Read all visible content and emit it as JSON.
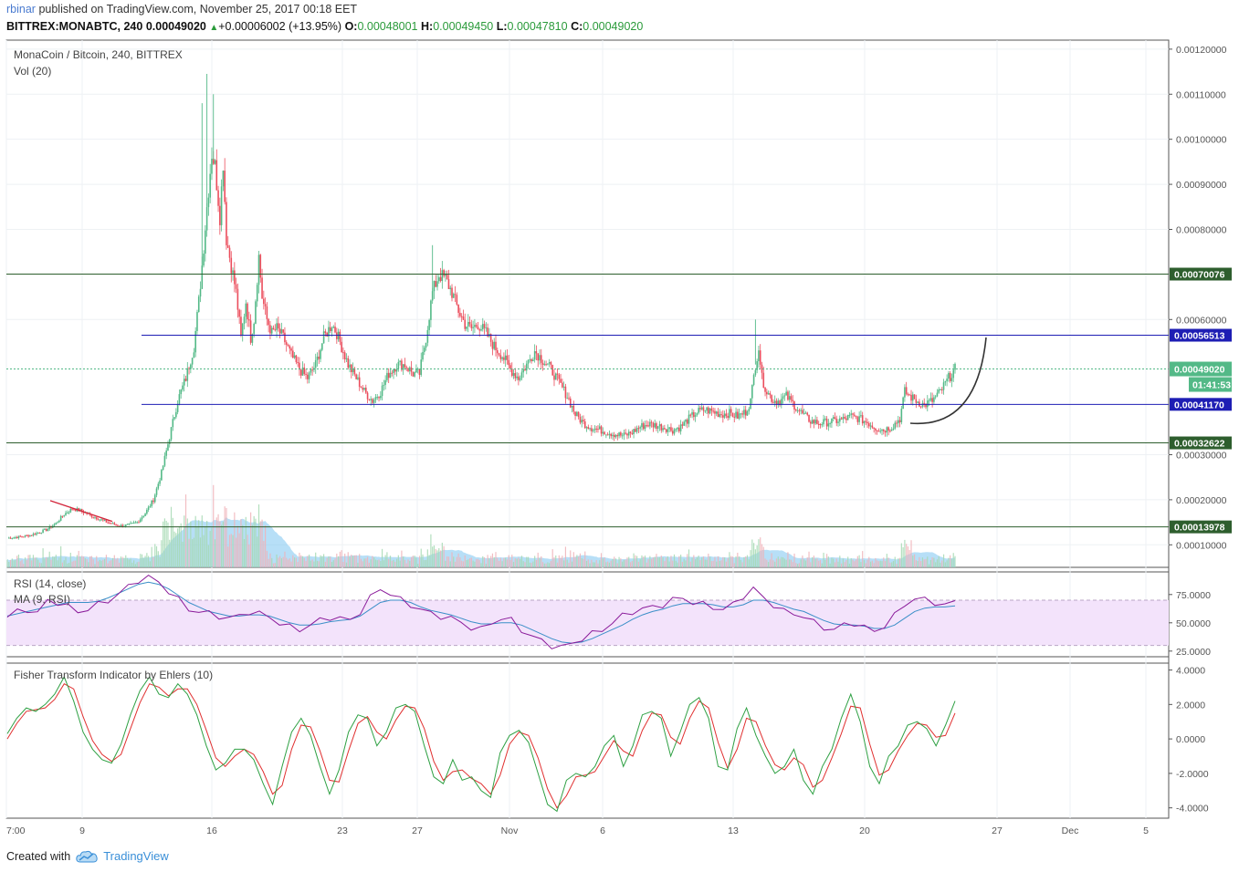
{
  "header": {
    "publisher": "rbinar",
    "published_text": "published on TradingView.com, November 25, 2017 00:18 EET"
  },
  "quote": {
    "symbol": "BITTREX:MONABTC, 240",
    "last": "0.00049020",
    "change": "+0.00006002 (+13.95%)",
    "open_label": "O:",
    "open": "0.00048001",
    "high_label": "H:",
    "high": "0.00049450",
    "low_label": "L:",
    "low": "0.00047810",
    "close_label": "C:",
    "close": "0.00049020"
  },
  "footer": {
    "created_with": "Created with",
    "brand": "TradingView",
    "logo_icon": "tradingview-cloud-icon"
  },
  "colors": {
    "up": "#53b987",
    "down": "#eb4d5c",
    "blue_line": "#1e1eb4",
    "green_line": "#2e5e2e",
    "rsi_band": "#f3e3fb",
    "rsi_line": "#8a1a9a",
    "rsi_ma": "#3b8fc8",
    "fisher_green": "#2ea043",
    "fisher_red": "#e03030",
    "volume_ma": "#7cc4f0"
  },
  "chart_data": [
    {
      "type": "candlestick",
      "title": "MonaCoin / Bitcoin, 240, BITTREX",
      "subtitle": "Vol (20)",
      "ylim": [
        5e-05,
        0.00122
      ],
      "y_ticks": [
        "0.00120000",
        "0.00110000",
        "0.00100000",
        "0.00090000",
        "0.00080000",
        "0.00060000",
        "0.00030000",
        "0.00020000",
        "0.00010000"
      ],
      "x_ticks": [
        "7:00",
        "9",
        "16",
        "23",
        "27",
        "Nov",
        "6",
        "13",
        "20",
        "27",
        "Dec",
        "5"
      ],
      "price_path": [
        [
          0,
          0.000115
        ],
        [
          8,
          0.000118
        ],
        [
          15,
          0.000122
        ],
        [
          20,
          0.000128
        ],
        [
          25,
          0.000135
        ],
        [
          30,
          0.000148
        ],
        [
          35,
          0.000168
        ],
        [
          40,
          0.00018
        ],
        [
          45,
          0.000176
        ],
        [
          50,
          0.000168
        ],
        [
          55,
          0.00016
        ],
        [
          60,
          0.000152
        ],
        [
          65,
          0.000146
        ],
        [
          70,
          0.000142
        ],
        [
          75,
          0.000144
        ],
        [
          80,
          0.00015
        ],
        [
          85,
          0.00017
        ],
        [
          90,
          0.0002
        ],
        [
          95,
          0.00026
        ],
        [
          100,
          0.00034
        ],
        [
          105,
          0.00042
        ],
        [
          110,
          0.00047
        ],
        [
          115,
          0.00054
        ],
        [
          118,
          0.00064
        ],
        [
          120,
          0.00072
        ],
        [
          123,
          0.00085
        ],
        [
          126,
          0.00097
        ],
        [
          128,
          0.00094
        ],
        [
          131,
          0.00083
        ],
        [
          133,
          0.00095
        ],
        [
          135,
          0.00078
        ],
        [
          138,
          0.00072
        ],
        [
          141,
          0.00066
        ],
        [
          144,
          0.00056
        ],
        [
          147,
          0.00064
        ],
        [
          150,
          0.00056
        ],
        [
          152,
          0.0006
        ],
        [
          155,
          0.00074
        ],
        [
          157,
          0.00065
        ],
        [
          160,
          0.0006
        ],
        [
          163,
          0.00057
        ],
        [
          166,
          0.00058
        ],
        [
          170,
          0.00056
        ],
        [
          175,
          0.00052
        ],
        [
          180,
          0.00049
        ],
        [
          185,
          0.00047
        ],
        [
          190,
          0.0005
        ],
        [
          195,
          0.00056
        ],
        [
          200,
          0.00059
        ],
        [
          203,
          0.00057
        ],
        [
          206,
          0.00054
        ],
        [
          210,
          0.0005
        ],
        [
          215,
          0.00047
        ],
        [
          220,
          0.00044
        ],
        [
          225,
          0.00042
        ],
        [
          230,
          0.00044
        ],
        [
          235,
          0.00048
        ],
        [
          240,
          0.0005
        ],
        [
          245,
          0.0005
        ],
        [
          250,
          0.00048
        ],
        [
          254,
          0.00048
        ],
        [
          258,
          0.00056
        ],
        [
          262,
          0.00066
        ],
        [
          266,
          0.0007
        ],
        [
          270,
          0.00069
        ],
        [
          274,
          0.00066
        ],
        [
          278,
          0.00062
        ],
        [
          282,
          0.00059
        ],
        [
          286,
          0.00058
        ],
        [
          290,
          0.00059
        ],
        [
          295,
          0.00057
        ],
        [
          300,
          0.00054
        ],
        [
          305,
          0.00052
        ],
        [
          310,
          0.00049
        ],
        [
          315,
          0.00047
        ],
        [
          320,
          0.0005
        ],
        [
          325,
          0.00053
        ],
        [
          330,
          0.00051
        ],
        [
          335,
          0.00049
        ],
        [
          340,
          0.00046
        ],
        [
          345,
          0.00043
        ],
        [
          350,
          0.00039
        ],
        [
          355,
          0.00037
        ],
        [
          360,
          0.00036
        ],
        [
          365,
          0.000355
        ],
        [
          370,
          0.00035
        ],
        [
          375,
          0.000345
        ],
        [
          380,
          0.000342
        ],
        [
          385,
          0.00035
        ],
        [
          390,
          0.000362
        ],
        [
          395,
          0.000368
        ],
        [
          400,
          0.000365
        ],
        [
          405,
          0.00036
        ],
        [
          410,
          0.000355
        ],
        [
          415,
          0.000362
        ],
        [
          420,
          0.00038
        ],
        [
          425,
          0.000395
        ],
        [
          430,
          0.0004
        ],
        [
          435,
          0.000395
        ],
        [
          440,
          0.00039
        ],
        [
          445,
          0.000392
        ],
        [
          450,
          0.000385
        ],
        [
          455,
          0.000395
        ],
        [
          458,
          0.00042
        ],
        [
          461,
          0.0005
        ],
        [
          463,
          0.00054
        ],
        [
          465,
          0.00047
        ],
        [
          468,
          0.00044
        ],
        [
          472,
          0.00042
        ],
        [
          476,
          0.00042
        ],
        [
          480,
          0.00043
        ],
        [
          485,
          0.00041
        ],
        [
          490,
          0.00039
        ],
        [
          495,
          0.000375
        ],
        [
          500,
          0.00037
        ],
        [
          505,
          0.000372
        ],
        [
          510,
          0.000375
        ],
        [
          515,
          0.000378
        ],
        [
          520,
          0.000385
        ],
        [
          525,
          0.00038
        ],
        [
          530,
          0.000372
        ],
        [
          535,
          0.00036
        ],
        [
          540,
          0.000355
        ],
        [
          545,
          0.000362
        ],
        [
          550,
          0.00038
        ],
        [
          553,
          0.00044
        ],
        [
          556,
          0.00043
        ],
        [
          560,
          0.00042
        ],
        [
          565,
          0.00041
        ],
        [
          570,
          0.00042
        ],
        [
          575,
          0.00044
        ],
        [
          580,
          0.00047
        ],
        [
          584,
          0.00049
        ]
      ],
      "price_series_last_index": 584,
      "horizontal_lines": [
        {
          "value": 0.00070076,
          "label": "0.00070076",
          "color": "green"
        },
        {
          "value": 0.00056513,
          "label": "0.00056513",
          "color": "blue"
        },
        {
          "value": 0.0004117,
          "label": "0.00041170",
          "color": "blue"
        },
        {
          "value": 0.00032622,
          "label": "0.00032622",
          "color": "green"
        },
        {
          "value": 0.00013978,
          "label": "0.00013978",
          "color": "green"
        }
      ],
      "last_price_badge": {
        "value": 0.0004902,
        "label": "0.00049020",
        "countdown": "01:41:53"
      }
    },
    {
      "type": "line",
      "title": "RSI (14, close)",
      "subtitle": "MA (9, RSI)",
      "ylim": [
        20,
        95
      ],
      "y_ticks": [
        "75.0000",
        "50.0000",
        "25.0000"
      ],
      "band": [
        30,
        70
      ],
      "series": [
        {
          "values": [
            55,
            60,
            62,
            58,
            70,
            68,
            64,
            60,
            62,
            66,
            70,
            75,
            82,
            88,
            90,
            86,
            78,
            70,
            62,
            60,
            58,
            56,
            54,
            56,
            60,
            58,
            55,
            50,
            46,
            44,
            48,
            52,
            55,
            54,
            52,
            60,
            72,
            80,
            76,
            70,
            66,
            62,
            58,
            56,
            54,
            50,
            46,
            44,
            50,
            54,
            52,
            44,
            38,
            34,
            30,
            28,
            32,
            36,
            40,
            44,
            50,
            56,
            60,
            62,
            64,
            66,
            70,
            72,
            68,
            66,
            64,
            62,
            66,
            74,
            80,
            72,
            66,
            60,
            58,
            56,
            50,
            46,
            44,
            48,
            50,
            46,
            42,
            48,
            56,
            66,
            72,
            70,
            68,
            66,
            68
          ]
        },
        {
          "values": [
            56,
            58,
            60,
            62,
            64,
            66,
            68,
            68,
            68,
            69,
            72,
            76,
            80,
            84,
            86,
            84,
            80,
            74,
            68,
            64,
            60,
            58,
            56,
            56,
            57,
            57,
            56,
            53,
            50,
            48,
            48,
            49,
            51,
            52,
            53,
            56,
            62,
            68,
            70,
            70,
            68,
            64,
            61,
            59,
            57,
            54,
            51,
            49,
            49,
            50,
            50,
            48,
            44,
            40,
            36,
            33,
            32,
            33,
            36,
            40,
            44,
            48,
            53,
            57,
            60,
            62,
            65,
            67,
            67,
            67,
            66,
            64,
            64,
            66,
            70,
            70,
            68,
            65,
            62,
            60,
            56,
            52,
            49,
            48,
            48,
            47,
            45,
            45,
            48,
            54,
            60,
            63,
            64,
            64,
            65
          ]
        }
      ]
    },
    {
      "type": "line",
      "title": "Fisher Transform Indicator by Ehlers (10)",
      "ylim": [
        -4.6,
        4.4
      ],
      "y_ticks": [
        "4.0000",
        "2.0000",
        "0.0000",
        "-2.0000",
        "-4.0000"
      ],
      "series": [
        {
          "values": [
            0.3,
            1.2,
            1.8,
            1.6,
            2.0,
            2.6,
            3.6,
            2.2,
            0.4,
            -0.6,
            -1.2,
            -1.4,
            -0.3,
            1.4,
            2.8,
            3.6,
            2.6,
            2.4,
            3.2,
            2.6,
            1.4,
            -0.4,
            -1.8,
            -1.4,
            -0.6,
            -0.6,
            -1.2,
            -2.6,
            -3.8,
            -1.6,
            0.4,
            1.2,
            0.2,
            -1.6,
            -3.2,
            -1.8,
            0.4,
            1.4,
            1.2,
            -0.4,
            0.4,
            1.8,
            2.0,
            1.6,
            -0.4,
            -2.2,
            -2.6,
            -1.2,
            -2.4,
            -2.2,
            -3.0,
            -3.4,
            -0.8,
            0.2,
            0.5,
            -0.2,
            -2.0,
            -3.8,
            -4.2,
            -2.4,
            -2.0,
            -2.2,
            -1.6,
            -0.4,
            0.2,
            -1.6,
            -0.4,
            1.4,
            1.6,
            1.2,
            -1.0,
            0.4,
            2.0,
            2.4,
            1.2,
            -1.6,
            -1.8,
            0.6,
            1.8,
            0.2,
            -1.0,
            -2.0,
            -1.6,
            -0.6,
            -2.4,
            -3.2,
            -1.6,
            -0.6,
            1.2,
            2.6,
            1.0,
            -1.6,
            -2.6,
            -1.0,
            -0.4,
            0.8,
            1.0,
            0.6,
            -0.4,
            0.8,
            2.2
          ]
        },
        {
          "values": [
            0.0,
            0.9,
            1.6,
            1.7,
            1.8,
            2.3,
            3.2,
            2.9,
            1.3,
            -0.1,
            -0.9,
            -1.3,
            -0.9,
            0.6,
            2.1,
            3.2,
            3.0,
            2.5,
            2.9,
            2.9,
            2.0,
            0.5,
            -1.1,
            -1.6,
            -1.0,
            -0.6,
            -0.9,
            -1.9,
            -3.2,
            -2.7,
            -0.6,
            0.8,
            0.7,
            -0.7,
            -2.4,
            -2.5,
            -0.7,
            0.9,
            1.3,
            0.4,
            0.0,
            1.1,
            1.9,
            1.8,
            0.6,
            -1.3,
            -2.4,
            -1.9,
            -1.8,
            -2.3,
            -2.6,
            -3.2,
            -2.1,
            -0.3,
            0.4,
            0.2,
            -1.1,
            -2.9,
            -4.0,
            -3.3,
            -2.2,
            -2.1,
            -1.9,
            -1.0,
            -0.1,
            -0.7,
            -1.0,
            0.5,
            1.5,
            1.4,
            0.1,
            -0.3,
            1.2,
            2.2,
            1.8,
            -0.2,
            -1.7,
            -0.6,
            1.2,
            1.0,
            -0.4,
            -1.5,
            -1.8,
            -1.1,
            -1.5,
            -2.8,
            -2.4,
            -1.1,
            0.3,
            1.9,
            1.8,
            -0.3,
            -2.1,
            -1.8,
            -0.7,
            0.2,
            0.9,
            0.8,
            0.1,
            0.2,
            1.5
          ]
        }
      ]
    }
  ]
}
